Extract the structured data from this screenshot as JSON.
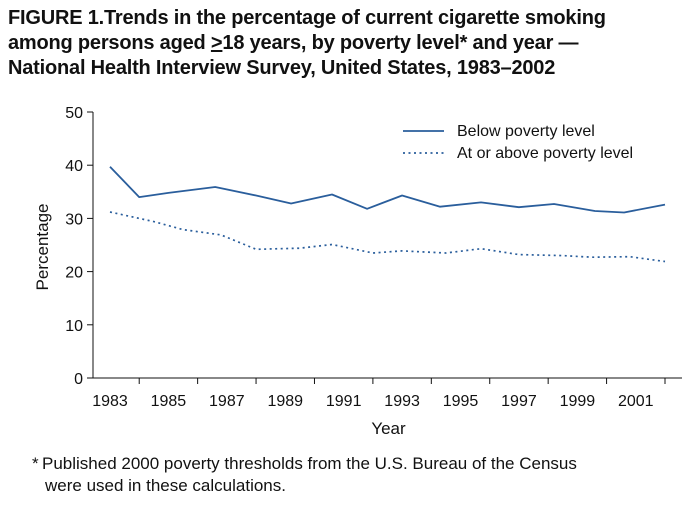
{
  "title": {
    "part1": "FIGURE 1.Trends in the percentage of current cigarette smoking",
    "part2_prefix": "among persons aged ",
    "part2_underlined": ">",
    "part2_suffix": "18 years, by poverty level* and year —",
    "part3": "National Health Interview Survey, United States, 1983–2002"
  },
  "footnote": {
    "mark": "*",
    "line1": "Published 2000 poverty thresholds from the U.S. Bureau of the Census",
    "line2": "were used in these calculations."
  },
  "chart_data": {
    "type": "line",
    "xlabel": "Year",
    "ylabel": "Percentage",
    "xlim": [
      1983,
      2002
    ],
    "ylim": [
      0,
      50
    ],
    "x_ticks": [
      1983,
      1985,
      1987,
      1989,
      1991,
      1993,
      1995,
      1997,
      1999,
      2001
    ],
    "y_ticks": [
      0,
      10,
      20,
      30,
      40,
      50
    ],
    "grid": false,
    "legend_position": "top-right",
    "series": [
      {
        "name": "Below poverty level",
        "style": "solid",
        "color": "#2a5e9c",
        "points": [
          [
            1983,
            39.7
          ],
          [
            1984,
            34.0
          ],
          [
            1985,
            34.8
          ],
          [
            1986.6,
            35.9
          ],
          [
            1988,
            34.3
          ],
          [
            1989.2,
            32.8
          ],
          [
            1990.6,
            34.5
          ],
          [
            1991.8,
            31.8
          ],
          [
            1993,
            34.3
          ],
          [
            1994.3,
            32.2
          ],
          [
            1995.7,
            33.0
          ],
          [
            1997,
            32.1
          ],
          [
            1998.2,
            32.7
          ],
          [
            1999.6,
            31.4
          ],
          [
            2000.6,
            31.1
          ],
          [
            2002,
            32.6
          ]
        ]
      },
      {
        "name": "At or above poverty level",
        "style": "dotted",
        "color": "#2a5e9c",
        "points": [
          [
            1983,
            31.2
          ],
          [
            1984.5,
            29.4
          ],
          [
            1985.5,
            27.9
          ],
          [
            1986.8,
            26.9
          ],
          [
            1988,
            24.2
          ],
          [
            1989.5,
            24.4
          ],
          [
            1990.6,
            25.1
          ],
          [
            1992,
            23.5
          ],
          [
            1993,
            23.9
          ],
          [
            1994.5,
            23.5
          ],
          [
            1995.7,
            24.3
          ],
          [
            1997,
            23.2
          ],
          [
            1998.5,
            23.0
          ],
          [
            1999.5,
            22.7
          ],
          [
            2000.8,
            22.8
          ],
          [
            2002,
            21.9
          ]
        ]
      }
    ]
  }
}
